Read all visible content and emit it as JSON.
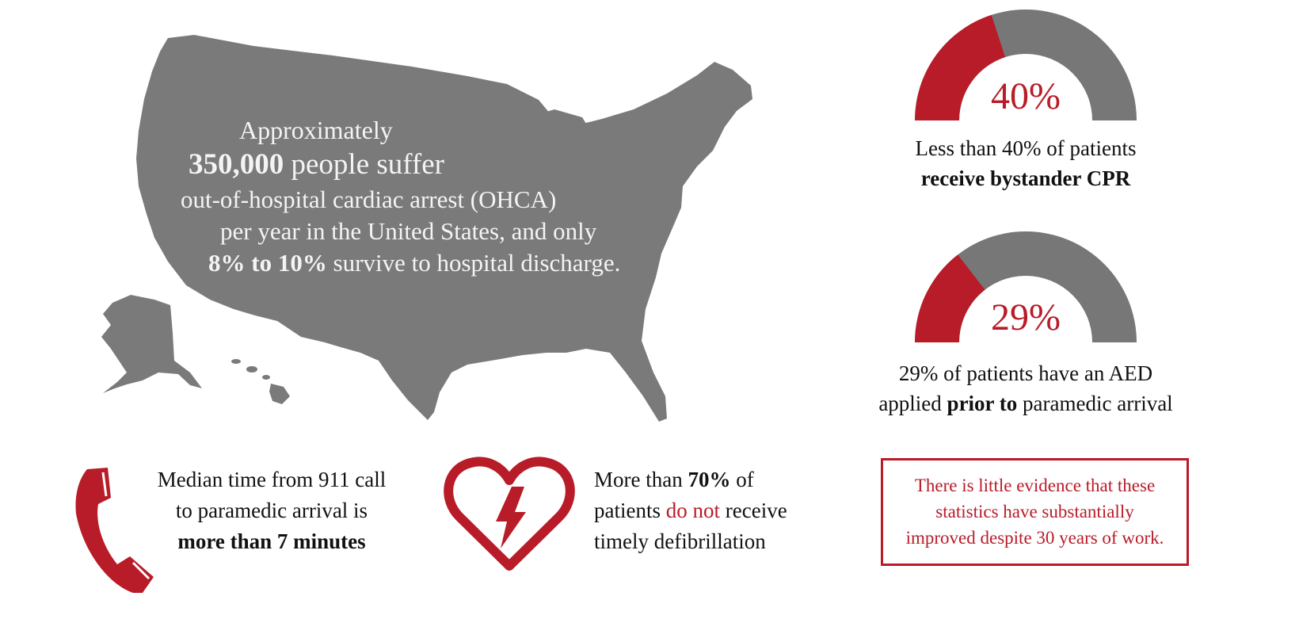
{
  "colors": {
    "accent": "#b81c28",
    "map_gray": "#7a7a7a",
    "gauge_gray": "#777777",
    "text": "#111111",
    "map_text": "#f4f4f4"
  },
  "map": {
    "line1": "Approximately",
    "line2_bold": "350,000",
    "line2_rest": " people suffer",
    "line3": "out-of-hospital cardiac arrest (OHCA)",
    "line4": "per year in the United States, and only",
    "line5_bold": "8% to 10%",
    "line5_rest": " survive to hospital discharge."
  },
  "gauges": [
    {
      "value_label": "40%",
      "percent": 40,
      "caption_line1": "Less than 40% of patients",
      "caption_line2_bold": "receive bystander CPR"
    },
    {
      "value_label": "29%",
      "percent": 29,
      "caption_line1": "29% of patients have an AED",
      "caption_line2_pre": "applied ",
      "caption_line2_bold": "prior to",
      "caption_line2_post": " paramedic arrival"
    }
  ],
  "stats": {
    "phone": {
      "icon": "phone-icon",
      "line1": "Median time from 911 call",
      "line2": "to paramedic arrival is",
      "line3_bold": "more than 7 minutes"
    },
    "heart": {
      "icon": "heart-lightning-icon",
      "line1_pre": "More than ",
      "line1_bold": "70%",
      "line1_post": " of",
      "line2_pre": "patients ",
      "line2_red": "do not",
      "line2_post": " receive",
      "line3": "timely defibrillation"
    }
  },
  "note": {
    "line1": "There is little evidence that these",
    "line2": "statistics have substantially",
    "line3": "improved despite 30 years of work."
  }
}
